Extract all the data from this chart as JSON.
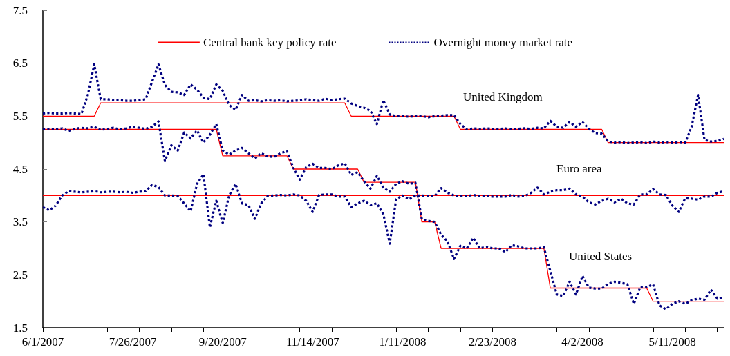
{
  "chart_data": {
    "type": "line",
    "categories": [
      "6/1/2007",
      null,
      null,
      null,
      null,
      null,
      null,
      null,
      null,
      null,
      null,
      null,
      null,
      null,
      "7/26/2007",
      null,
      null,
      null,
      null,
      null,
      null,
      null,
      null,
      null,
      null,
      null,
      null,
      null,
      "9/20/2007",
      null,
      null,
      null,
      null,
      null,
      null,
      null,
      null,
      null,
      null,
      null,
      null,
      null,
      "11/14/2007",
      null,
      null,
      null,
      null,
      null,
      null,
      null,
      null,
      null,
      null,
      null,
      null,
      null,
      "1/11/2008",
      null,
      null,
      null,
      null,
      null,
      null,
      null,
      null,
      null,
      null,
      null,
      null,
      null,
      "2/23/2008",
      null,
      null,
      null,
      null,
      null,
      null,
      null,
      null,
      null,
      null,
      null,
      null,
      null,
      "4/2/2008",
      null,
      null,
      null,
      null,
      null,
      null,
      null,
      null,
      null,
      null,
      null,
      null,
      null,
      "5/11/2008",
      null,
      null,
      null,
      null,
      null,
      null,
      null,
      null
    ],
    "ylim": [
      1.5,
      7.5
    ],
    "yticks": [
      1.5,
      2.5,
      3.5,
      4.5,
      5.5,
      6.5,
      7.5
    ],
    "legend": "top",
    "annotations": [
      "United Kingdom",
      "Euro area",
      "United States"
    ],
    "series": [
      {
        "name": "Central bank key policy rate",
        "color": "#ff0000",
        "line_style": "solid",
        "values": [
          5.5,
          5.5,
          5.5,
          5.5,
          5.5,
          5.5,
          5.5,
          5.5,
          5.5,
          5.75,
          5.75,
          5.75,
          5.75,
          5.75,
          5.75,
          5.75,
          5.75,
          5.75,
          5.75,
          5.75,
          5.75,
          5.75,
          5.75,
          5.75,
          5.75,
          5.75,
          5.75,
          5.75,
          5.75,
          5.75,
          5.75,
          5.75,
          5.75,
          5.75,
          5.75,
          5.75,
          5.75,
          5.75,
          5.75,
          5.75,
          5.75,
          5.75,
          5.75,
          5.75,
          5.75,
          5.75,
          5.75,
          5.75,
          5.5,
          5.5,
          5.5,
          5.5,
          5.5,
          5.5,
          5.5,
          5.5,
          5.5,
          5.5,
          5.5,
          5.5,
          5.5,
          5.5,
          5.5,
          5.5,
          5.5,
          5.25,
          5.25,
          5.25,
          5.25,
          5.25,
          5.25,
          5.25,
          5.25,
          5.25,
          5.25,
          5.25,
          5.25,
          5.25,
          5.25,
          5.25,
          5.25,
          5.25,
          5.25,
          5.25,
          5.25,
          5.25,
          5.25,
          5.25,
          5.0,
          5.0,
          5.0,
          5.0,
          5.0,
          5.0,
          5.0,
          5.0,
          5.0,
          5.0,
          5.0,
          5.0,
          5.0,
          5.0,
          5.0,
          5.0,
          5.0,
          5.0,
          5.0
        ]
      },
      {
        "color": "#ff0000",
        "line_style": "solid",
        "values": [
          4.0,
          4.0,
          4.0,
          4.0,
          4.0,
          4.0,
          4.0,
          4.0,
          4.0,
          4.0,
          4.0,
          4.0,
          4.0,
          4.0,
          4.0,
          4.0,
          4.0,
          4.0,
          4.0,
          4.0,
          4.0,
          4.0,
          4.0,
          4.0,
          4.0,
          4.0,
          4.0,
          4.0,
          4.0,
          4.0,
          4.0,
          4.0,
          4.0,
          4.0,
          4.0,
          4.0,
          4.0,
          4.0,
          4.0,
          4.0,
          4.0,
          4.0,
          4.0,
          4.0,
          4.0,
          4.0,
          4.0,
          4.0,
          4.0,
          4.0,
          4.0,
          4.0,
          4.0,
          4.0,
          4.0,
          4.0,
          4.0,
          4.0,
          4.0,
          4.0,
          4.0,
          4.0,
          4.0,
          4.0,
          4.0,
          4.0,
          4.0,
          4.0,
          4.0,
          4.0,
          4.0,
          4.0,
          4.0,
          4.0,
          4.0,
          4.0,
          4.0,
          4.0,
          4.0,
          4.0,
          4.0,
          4.0,
          4.0,
          4.0,
          4.0,
          4.0,
          4.0,
          4.0,
          4.0,
          4.0,
          4.0,
          4.0,
          4.0,
          4.0,
          4.0,
          4.0,
          4.0,
          4.0,
          4.0,
          4.0,
          4.0,
          4.0,
          4.0,
          4.0,
          4.0,
          4.0,
          4.0
        ]
      },
      {
        "color": "#ff0000",
        "line_style": "solid",
        "values": [
          5.25,
          5.25,
          5.25,
          5.25,
          5.25,
          5.25,
          5.25,
          5.25,
          5.25,
          5.25,
          5.25,
          5.25,
          5.25,
          5.25,
          5.25,
          5.25,
          5.25,
          5.25,
          5.25,
          5.25,
          5.25,
          5.25,
          5.25,
          5.25,
          5.25,
          5.25,
          5.25,
          5.25,
          4.75,
          4.75,
          4.75,
          4.75,
          4.75,
          4.75,
          4.75,
          4.75,
          4.75,
          4.75,
          4.75,
          4.5,
          4.5,
          4.5,
          4.5,
          4.5,
          4.5,
          4.5,
          4.5,
          4.5,
          4.5,
          4.5,
          4.25,
          4.25,
          4.25,
          4.25,
          4.25,
          4.25,
          4.25,
          4.25,
          4.25,
          3.5,
          3.5,
          3.5,
          3.0,
          3.0,
          3.0,
          3.0,
          3.0,
          3.0,
          3.0,
          3.0,
          3.0,
          3.0,
          3.0,
          3.0,
          3.0,
          3.0,
          3.0,
          3.0,
          3.0,
          2.25,
          2.25,
          2.25,
          2.25,
          2.25,
          2.25,
          2.25,
          2.25,
          2.25,
          2.25,
          2.25,
          2.25,
          2.25,
          2.25,
          2.25,
          2.25,
          2.0,
          2.0,
          2.0,
          2.0,
          2.0,
          2.0,
          2.0,
          2.0,
          2.0,
          2.0,
          2.0,
          2.0
        ]
      },
      {
        "name": "Overnight money market rate",
        "color": "#000080",
        "line_style": "dotted",
        "values": [
          5.55,
          5.56,
          5.55,
          5.55,
          5.56,
          5.55,
          5.54,
          5.9,
          6.48,
          5.82,
          5.82,
          5.8,
          5.8,
          5.79,
          5.79,
          5.8,
          5.82,
          6.15,
          6.48,
          6.09,
          5.96,
          5.95,
          5.9,
          6.1,
          6.0,
          5.85,
          5.82,
          6.1,
          5.98,
          5.71,
          5.62,
          5.9,
          5.79,
          5.8,
          5.78,
          5.8,
          5.79,
          5.8,
          5.78,
          5.79,
          5.8,
          5.82,
          5.8,
          5.79,
          5.83,
          5.8,
          5.82,
          5.83,
          5.74,
          5.69,
          5.66,
          5.6,
          5.35,
          5.8,
          5.53,
          5.5,
          5.5,
          5.49,
          5.5,
          5.5,
          5.48,
          5.5,
          5.51,
          5.52,
          5.52,
          5.35,
          5.25,
          5.27,
          5.26,
          5.27,
          5.26,
          5.26,
          5.27,
          5.25,
          5.26,
          5.27,
          5.26,
          5.28,
          5.27,
          5.41,
          5.3,
          5.28,
          5.39,
          5.3,
          5.39,
          5.26,
          5.18,
          5.17,
          5.02,
          5.0,
          5.01,
          4.99,
          5.0,
          5.01,
          4.99,
          5.02,
          5.0,
          5.01,
          5.0,
          5.01,
          5.0,
          5.3,
          5.9,
          5.05,
          5.02,
          5.03,
          5.07
        ]
      },
      {
        "color": "#000080",
        "line_style": "dotted",
        "values": [
          3.78,
          3.72,
          3.81,
          4.0,
          4.08,
          4.07,
          4.06,
          4.07,
          4.08,
          4.06,
          4.07,
          4.07,
          4.06,
          4.07,
          4.05,
          4.07,
          4.08,
          4.2,
          4.16,
          4.0,
          4.0,
          3.99,
          3.85,
          3.7,
          4.22,
          4.4,
          3.4,
          3.9,
          3.48,
          4.0,
          4.22,
          3.85,
          3.82,
          3.56,
          3.85,
          3.99,
          4.0,
          4.01,
          4.0,
          4.02,
          4.0,
          3.9,
          3.69,
          4.01,
          4.02,
          4.02,
          3.98,
          3.98,
          3.78,
          3.85,
          3.9,
          3.82,
          3.85,
          3.65,
          3.09,
          3.93,
          4.0,
          3.93,
          4.0,
          4.0,
          3.99,
          3.99,
          4.14,
          4.05,
          4.0,
          3.99,
          3.99,
          4.01,
          3.99,
          3.99,
          3.98,
          3.98,
          3.98,
          4.01,
          3.98,
          3.99,
          4.05,
          4.15,
          4.02,
          4.07,
          4.1,
          4.1,
          4.13,
          4.02,
          3.98,
          3.87,
          3.83,
          3.9,
          3.94,
          3.87,
          3.94,
          3.85,
          3.83,
          4.02,
          4.02,
          4.12,
          4.02,
          4.01,
          3.81,
          3.69,
          3.95,
          3.94,
          3.92,
          3.98,
          3.98,
          4.05,
          4.08
        ]
      },
      {
        "color": "#000080",
        "line_style": "dotted",
        "values": [
          5.25,
          5.26,
          5.25,
          5.27,
          5.22,
          5.26,
          5.28,
          5.27,
          5.3,
          5.24,
          5.26,
          5.28,
          5.25,
          5.27,
          5.3,
          5.28,
          5.26,
          5.3,
          5.4,
          4.65,
          4.95,
          4.85,
          5.19,
          5.08,
          5.23,
          5.0,
          5.15,
          5.35,
          4.85,
          4.77,
          4.85,
          4.9,
          4.8,
          4.7,
          4.8,
          4.74,
          4.73,
          4.8,
          4.84,
          4.52,
          4.3,
          4.54,
          4.6,
          4.52,
          4.52,
          4.5,
          4.57,
          4.61,
          4.39,
          4.44,
          4.27,
          4.13,
          4.37,
          4.15,
          4.07,
          4.22,
          4.27,
          4.22,
          4.24,
          3.55,
          3.52,
          3.5,
          3.26,
          3.13,
          2.8,
          3.05,
          3.0,
          3.2,
          3.0,
          3.03,
          3.0,
          3.0,
          2.93,
          3.06,
          3.04,
          3.0,
          3.0,
          3.0,
          3.02,
          2.57,
          2.13,
          2.1,
          2.37,
          2.13,
          2.48,
          2.26,
          2.24,
          2.24,
          2.33,
          2.37,
          2.35,
          2.32,
          1.95,
          2.27,
          2.27,
          2.32,
          1.92,
          1.85,
          1.95,
          2.0,
          1.95,
          2.02,
          2.05,
          2.03,
          2.22,
          2.05,
          2.07
        ]
      }
    ]
  }
}
